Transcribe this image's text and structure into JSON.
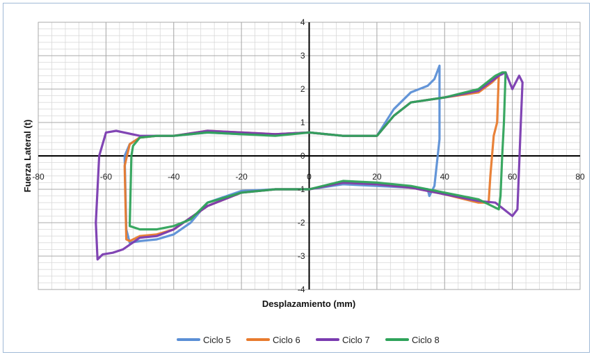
{
  "chart_data": {
    "type": "line",
    "xlabel": "Desplazamiento (mm)",
    "ylabel": "Fuerza Lateral (t)",
    "xlim": [
      -80,
      80
    ],
    "ylim": [
      -4,
      4
    ],
    "x_ticks": [
      -80,
      -60,
      -40,
      -20,
      0,
      20,
      40,
      60,
      80
    ],
    "y_ticks": [
      -4,
      -3,
      -2,
      -1,
      0,
      1,
      2,
      3,
      4
    ],
    "grid": true,
    "legend_position": "bottom",
    "series": [
      {
        "name": "Ciclo 5",
        "color": "#5b8fd6",
        "x": [
          0,
          10,
          20,
          25,
          30,
          35,
          37,
          38.5,
          38.5,
          37,
          35.5,
          35,
          30,
          20,
          10,
          0,
          -10,
          -20,
          -30,
          -35,
          -40,
          -45,
          -50,
          -53,
          -54,
          -54.5,
          -53,
          -50,
          -45,
          -40,
          -30,
          -20,
          -10,
          0
        ],
        "y": [
          0.7,
          0.6,
          0.6,
          1.4,
          1.9,
          2.1,
          2.3,
          2.7,
          0.5,
          -0.9,
          -1.2,
          -1.0,
          -0.95,
          -0.9,
          -0.85,
          -1.0,
          -1.0,
          -1.05,
          -1.4,
          -2.0,
          -2.35,
          -2.5,
          -2.55,
          -2.6,
          -2.2,
          0.0,
          0.35,
          0.55,
          0.6,
          0.6,
          0.7,
          0.65,
          0.65,
          0.7
        ]
      },
      {
        "name": "Ciclo 6",
        "color": "#e87b2e",
        "x": [
          0,
          10,
          20,
          25,
          30,
          40,
          50,
          54,
          56,
          55.5,
          54.5,
          53.5,
          53,
          50,
          40,
          30,
          20,
          10,
          0,
          -10,
          -20,
          -30,
          -40,
          -45,
          -50,
          -53,
          -54,
          -54.5,
          -53,
          -50,
          -45,
          -40,
          -30,
          -20,
          -10,
          0
        ],
        "y": [
          0.7,
          0.6,
          0.6,
          1.2,
          1.6,
          1.75,
          1.9,
          2.2,
          2.4,
          1.0,
          0.6,
          -0.6,
          -1.4,
          -1.4,
          -1.15,
          -0.95,
          -0.85,
          -0.8,
          -1.0,
          -1.0,
          -1.1,
          -1.5,
          -2.2,
          -2.35,
          -2.4,
          -2.55,
          -2.5,
          -0.3,
          0.35,
          0.55,
          0.6,
          0.6,
          0.75,
          0.7,
          0.65,
          0.7
        ]
      },
      {
        "name": "Ciclo 7",
        "color": "#7a3bb0",
        "x": [
          0,
          10,
          20,
          25,
          30,
          40,
          50,
          56,
          58,
          60,
          62,
          63,
          62.5,
          62,
          61.5,
          60,
          55,
          50,
          40,
          30,
          20,
          10,
          0,
          -10,
          -20,
          -30,
          -40,
          -45,
          -50,
          -55,
          -58,
          -61,
          -62.5,
          -63,
          -62,
          -60,
          -57,
          -50,
          -40,
          -30,
          -20,
          -10,
          0
        ],
        "y": [
          0.7,
          0.6,
          0.6,
          1.2,
          1.6,
          1.75,
          1.95,
          2.4,
          2.5,
          2.0,
          2.4,
          2.2,
          1.0,
          -0.3,
          -1.6,
          -1.8,
          -1.4,
          -1.35,
          -1.15,
          -0.95,
          -0.85,
          -0.8,
          -1.0,
          -1.0,
          -1.1,
          -1.5,
          -2.2,
          -2.4,
          -2.45,
          -2.8,
          -2.9,
          -2.95,
          -3.1,
          -2.0,
          0.0,
          0.7,
          0.75,
          0.6,
          0.6,
          0.75,
          0.7,
          0.65,
          0.7
        ]
      },
      {
        "name": "Ciclo 8",
        "color": "#2fa35a",
        "x": [
          0,
          10,
          20,
          25,
          30,
          40,
          50,
          55,
          57,
          58,
          57.5,
          57,
          56.5,
          56,
          50,
          40,
          30,
          20,
          10,
          0,
          -10,
          -20,
          -30,
          -35,
          -40,
          -45,
          -50,
          -53,
          -52.5,
          -52,
          -50,
          -45,
          -40,
          -30,
          -20,
          -10,
          0
        ],
        "y": [
          0.7,
          0.6,
          0.6,
          1.2,
          1.6,
          1.75,
          2.0,
          2.4,
          2.5,
          2.5,
          1.0,
          0.0,
          -1.2,
          -1.6,
          -1.3,
          -1.1,
          -0.9,
          -0.8,
          -0.75,
          -1.0,
          -1.0,
          -1.1,
          -1.4,
          -1.9,
          -2.1,
          -2.2,
          -2.2,
          -2.1,
          0.0,
          0.3,
          0.55,
          0.6,
          0.6,
          0.7,
          0.65,
          0.6,
          0.7
        ]
      }
    ]
  }
}
